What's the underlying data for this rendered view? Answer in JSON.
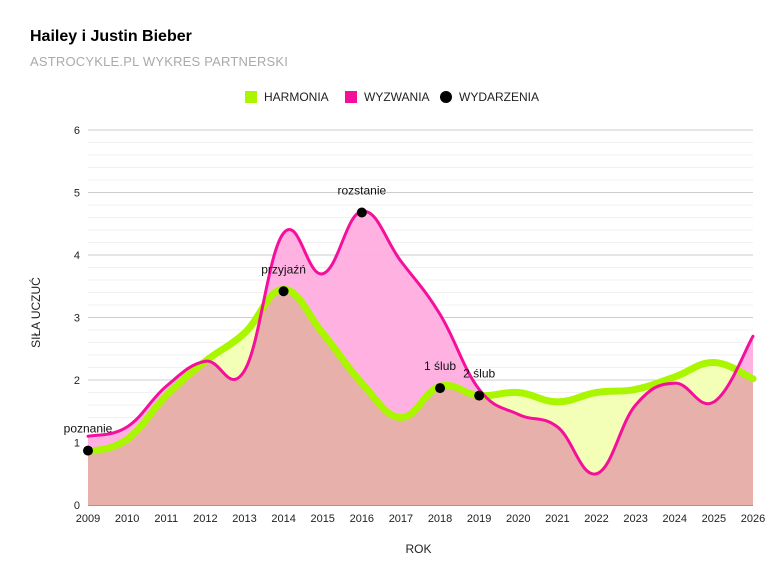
{
  "header": {
    "title": "Hailey i Justin Bieber",
    "subtitle": "ASTROCYKLE.PL WYKRES PARTNERSKI"
  },
  "chart_data": {
    "type": "area",
    "title": "Hailey i Justin Bieber",
    "subtitle": "ASTROCYKLE.PL WYKRES PARTNERSKI",
    "xlabel": "ROK",
    "ylabel": "SIŁA UCZUĆ",
    "xlim": [
      2009,
      2026
    ],
    "ylim": [
      0,
      6
    ],
    "yticks": [
      0,
      1,
      2,
      3,
      4,
      5,
      6
    ],
    "x": [
      2009,
      2010,
      2011,
      2012,
      2013,
      2014,
      2015,
      2016,
      2017,
      2018,
      2019,
      2020,
      2021,
      2022,
      2023,
      2024,
      2025,
      2026
    ],
    "legend_position": "top-center",
    "grid": true,
    "series": [
      {
        "name": "HARMONIA",
        "color": "#aaf500",
        "fill": "#f2ffb3",
        "values": [
          0.85,
          1.05,
          1.75,
          2.3,
          2.75,
          3.45,
          2.75,
          1.95,
          1.4,
          1.9,
          1.75,
          1.8,
          1.65,
          1.8,
          1.85,
          2.05,
          2.28,
          2.02
        ]
      },
      {
        "name": "WYZWANIA",
        "color": "#f5109c",
        "fill": "#ffaee0",
        "values": [
          1.1,
          1.25,
          1.9,
          2.3,
          2.15,
          4.35,
          3.7,
          4.7,
          3.9,
          3.05,
          1.85,
          1.45,
          1.25,
          0.5,
          1.6,
          1.95,
          1.65,
          2.7
        ]
      }
    ],
    "events": {
      "name": "WYDARZENIA",
      "color": "#000000",
      "points": [
        {
          "x": 2009,
          "y": 0.87,
          "label": "poznanie"
        },
        {
          "x": 2014,
          "y": 3.42,
          "label": "przyjaźń"
        },
        {
          "x": 2016,
          "y": 4.68,
          "label": "rozstanie"
        },
        {
          "x": 2018,
          "y": 1.87,
          "label": "1 ślub"
        },
        {
          "x": 2019,
          "y": 1.75,
          "label": "2 ślub"
        }
      ]
    },
    "overlap_fill": "#e8b0aa"
  }
}
